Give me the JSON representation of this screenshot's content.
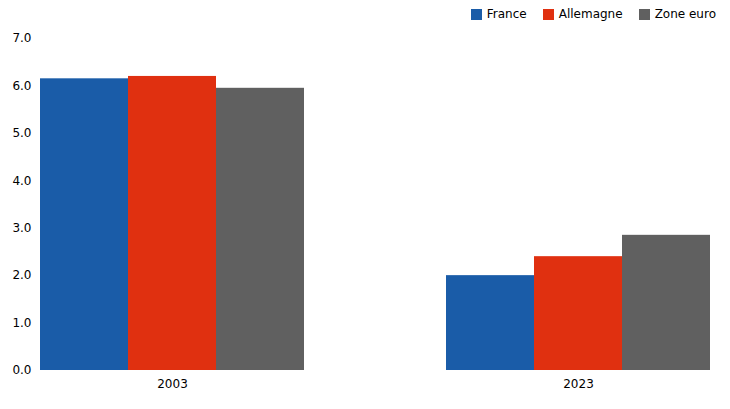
{
  "chart_data": {
    "type": "bar",
    "categories": [
      "2003",
      "2023"
    ],
    "series": [
      {
        "name": "France",
        "color": "#1a5ca8",
        "values": [
          6.15,
          2.0
        ]
      },
      {
        "name": "Allemagne",
        "color": "#e03010",
        "values": [
          6.2,
          2.4
        ]
      },
      {
        "name": "Zone euro",
        "color": "#606060",
        "values": [
          5.95,
          2.85
        ]
      }
    ],
    "ylim": [
      0,
      7
    ],
    "yticks": [
      0,
      1,
      2,
      3,
      4,
      5,
      6,
      7
    ],
    "grid": false,
    "legend": "upper right"
  }
}
